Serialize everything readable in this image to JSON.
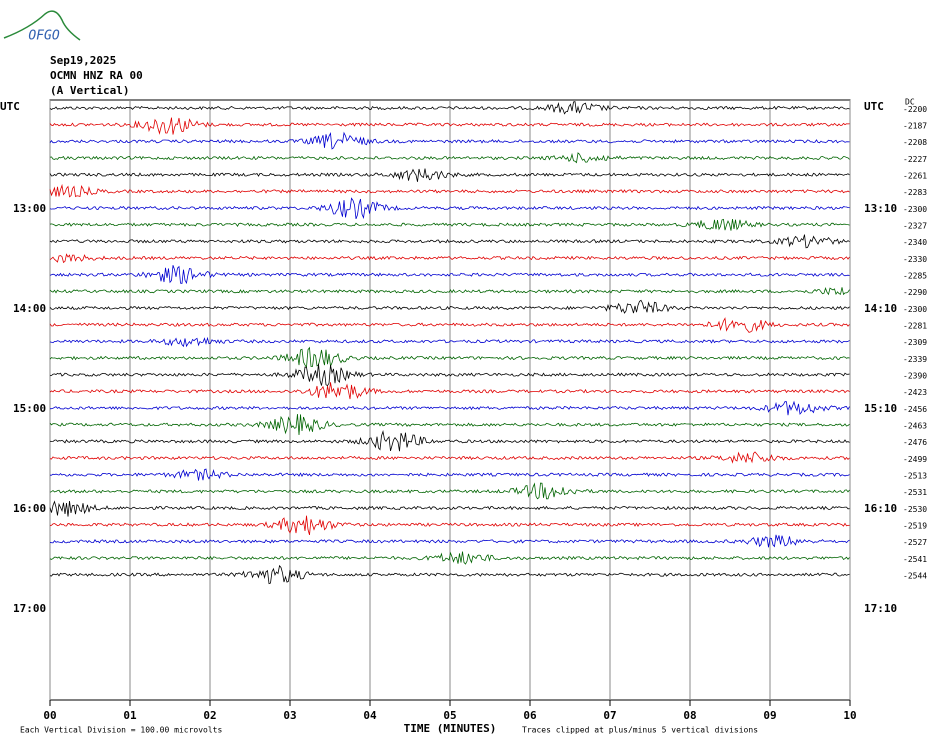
{
  "chart_data": {
    "type": "helicorder",
    "logo": "OFGO",
    "date": "Sep19,2025",
    "station": "OCMN HNZ RA 00",
    "component": "(A Vertical)",
    "left_labels": [
      "UTC",
      "13:00",
      "14:00",
      "15:00",
      "16:00",
      "17:00"
    ],
    "right_labels": [
      "UTC",
      "13:10",
      "14:10",
      "15:10",
      "16:10",
      "17:10"
    ],
    "offset_header": "DC",
    "trace_offsets": [
      -2200,
      -2187,
      -2208,
      -2227,
      -2261,
      -2283,
      -2300,
      -2327,
      -2340,
      -2330,
      -2285,
      -2290,
      -2300,
      -2281,
      -2309,
      -2339,
      -2390,
      -2423,
      -2456,
      -2463,
      -2476,
      -2499,
      -2513,
      -2531,
      -2530,
      -2519,
      -2527,
      -2541,
      -2544
    ],
    "trace_colors": [
      "#000000",
      "#e00000",
      "#0000d0",
      "#006400"
    ],
    "xlim": [
      0,
      10
    ],
    "xticks": [
      {
        "value": 0,
        "label": "00"
      },
      {
        "value": 1,
        "label": "01"
      },
      {
        "value": 2,
        "label": "02"
      },
      {
        "value": 3,
        "label": "03"
      },
      {
        "value": 4,
        "label": "04"
      },
      {
        "value": 5,
        "label": "05"
      },
      {
        "value": 6,
        "label": "06"
      },
      {
        "value": 7,
        "label": "07"
      },
      {
        "value": 8,
        "label": "08"
      },
      {
        "value": 9,
        "label": "09"
      },
      {
        "value": 10,
        "label": "10"
      }
    ],
    "xlabel": "TIME (MINUTES)",
    "scale_note": "Each Vertical Division =  100.00 microvolts",
    "clip_note": "Traces clipped at plus/minus 5 vertical divisions",
    "grid": true
  }
}
